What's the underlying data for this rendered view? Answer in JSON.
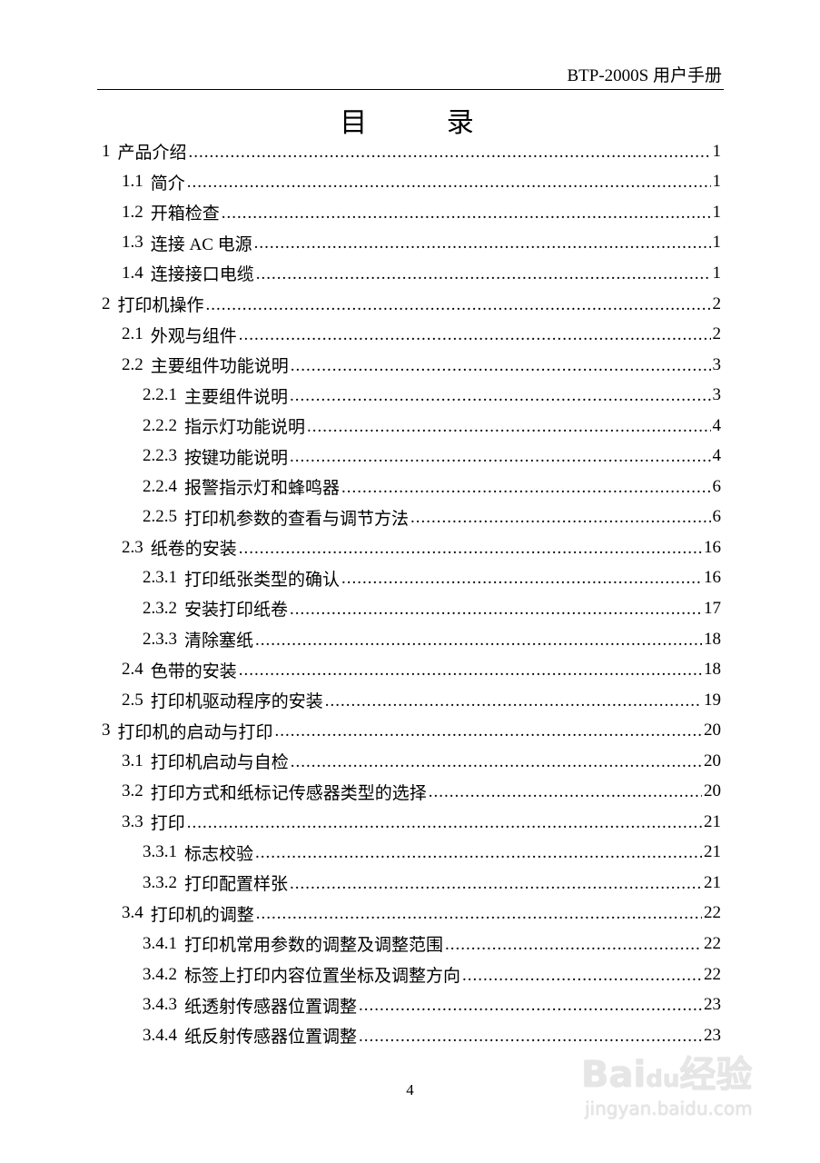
{
  "header": {
    "text": "BTP-2000S 用户手册"
  },
  "title": "目 录",
  "toc": [
    {
      "level": 1,
      "num": "1",
      "label": "产品介绍",
      "page": "1"
    },
    {
      "level": 2,
      "num": "1.1",
      "label": "简介",
      "page": "1"
    },
    {
      "level": 2,
      "num": "1.2",
      "label": "开箱检查",
      "page": "1"
    },
    {
      "level": 2,
      "num": "1.3",
      "label": "连接 AC 电源",
      "page": "1"
    },
    {
      "level": 2,
      "num": "1.4",
      "label": "连接接口电缆",
      "page": "1"
    },
    {
      "level": 1,
      "num": "2",
      "label": "打印机操作",
      "page": "2"
    },
    {
      "level": 2,
      "num": "2.1",
      "label": "外观与组件",
      "page": "2"
    },
    {
      "level": 2,
      "num": "2.2",
      "label": "主要组件功能说明",
      "page": "3"
    },
    {
      "level": 3,
      "num": "2.2.1",
      "label": "主要组件说明",
      "page": "3"
    },
    {
      "level": 3,
      "num": "2.2.2",
      "label": "指示灯功能说明",
      "page": "4"
    },
    {
      "level": 3,
      "num": "2.2.3",
      "label": "按键功能说明",
      "page": "4"
    },
    {
      "level": 3,
      "num": "2.2.4",
      "label": "报警指示灯和蜂鸣器",
      "page": "6"
    },
    {
      "level": 3,
      "num": "2.2.5",
      "label": "打印机参数的查看与调节方法",
      "page": "6"
    },
    {
      "level": 2,
      "num": "2.3",
      "label": "纸卷的安装",
      "page": "16"
    },
    {
      "level": 3,
      "num": "2.3.1",
      "label": "打印纸张类型的确认",
      "page": "16"
    },
    {
      "level": 3,
      "num": "2.3.2",
      "label": "安装打印纸卷",
      "page": "17"
    },
    {
      "level": 3,
      "num": "2.3.3",
      "label": "清除塞纸",
      "page": "18"
    },
    {
      "level": 2,
      "num": "2.4",
      "label": "色带的安装",
      "page": "18"
    },
    {
      "level": 2,
      "num": "2.5",
      "label": "打印机驱动程序的安装",
      "page": "19"
    },
    {
      "level": 1,
      "num": "3",
      "label": "打印机的启动与打印",
      "page": "20"
    },
    {
      "level": 2,
      "num": "3.1",
      "label": "打印机启动与自检",
      "page": "20"
    },
    {
      "level": 2,
      "num": "3.2",
      "label": "打印方式和纸标记传感器类型的选择",
      "page": "20"
    },
    {
      "level": 2,
      "num": "3.3",
      "label": "打印",
      "page": "21"
    },
    {
      "level": 3,
      "num": "3.3.1",
      "label": "标志校验",
      "page": "21"
    },
    {
      "level": 3,
      "num": "3.3.2",
      "label": "打印配置样张",
      "page": "21"
    },
    {
      "level": 2,
      "num": "3.4",
      "label": "打印机的调整",
      "page": "22"
    },
    {
      "level": 3,
      "num": "3.4.1",
      "label": "打印机常用参数的调整及调整范围",
      "page": "22"
    },
    {
      "level": 3,
      "num": "3.4.2",
      "label": "标签上打印内容位置坐标及调整方向",
      "page": "22"
    },
    {
      "level": 3,
      "num": "3.4.3",
      "label": "纸透射传感器位置调整",
      "page": "23"
    },
    {
      "level": 3,
      "num": "3.4.4",
      "label": "纸反射传感器位置调整",
      "page": "23"
    }
  ],
  "page_number": "4",
  "watermark": {
    "brand": "Baidu经验",
    "url": "jingyan.baidu.com"
  }
}
